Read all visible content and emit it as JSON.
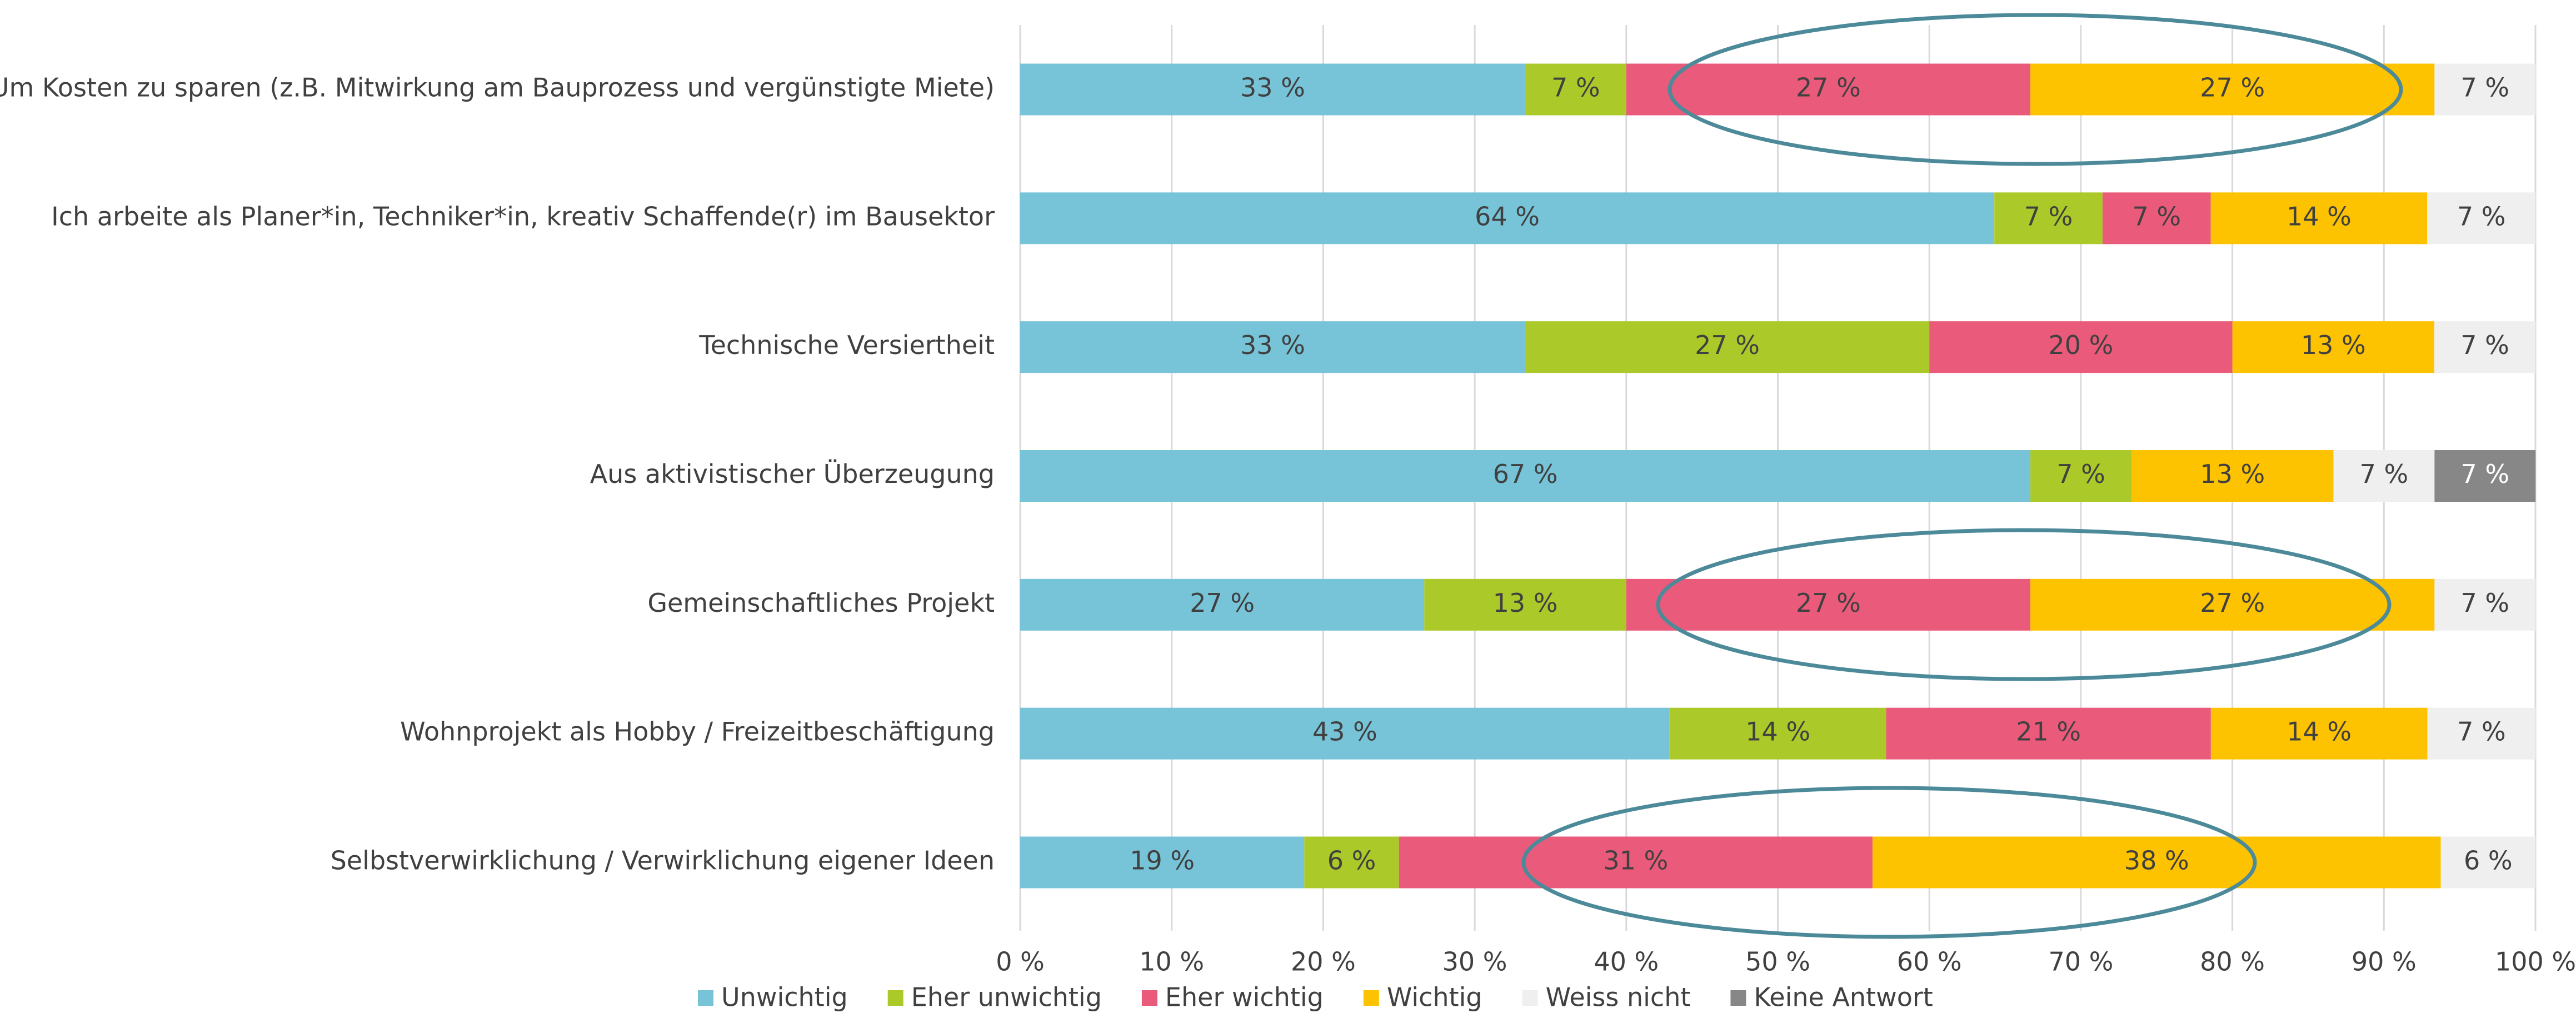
{
  "chart_data": {
    "type": "stacked_bar_horizontal",
    "categories": [
      "Um Kosten zu sparen (z.B. Mitwirkung am Bauprozess und vergünstigte Miete)",
      "Ich arbeite als Planer*in, Techniker*in, kreativ Schaffende(r) im Bausektor",
      "Technische Versiertheit",
      "Aus aktivistischer Überzeugung",
      "Gemeinschaftliches Projekt",
      "Wohnprojekt als Hobby / Freizeitbeschäftigung",
      "Selbstverwirklichung / Verwirklichung eigener Ideen"
    ],
    "series": [
      {
        "name": "Unwichtig",
        "color": "#77c4d9",
        "values": [
          33.33,
          64.29,
          33.33,
          66.67,
          26.67,
          42.86,
          18.75
        ],
        "value_labels": [
          "33 %",
          "64 %",
          "33 %",
          "67 %",
          "27 %",
          "43 %",
          "19 %"
        ]
      },
      {
        "name": "Eher unwichtig",
        "color": "#acc92a",
        "values": [
          6.67,
          7.14,
          26.67,
          6.67,
          13.33,
          14.29,
          6.25
        ],
        "value_labels": [
          "7 %",
          "7 %",
          "27 %",
          "7 %",
          "13 %",
          "14 %",
          "6 %"
        ]
      },
      {
        "name": "Eher wichtig",
        "color": "#ea5a7a",
        "values": [
          26.67,
          7.14,
          20,
          0,
          26.67,
          21.43,
          31.25
        ],
        "value_labels": [
          "27 %",
          "7 %",
          "20 %",
          null,
          "27 %",
          "21 %",
          "31 %"
        ]
      },
      {
        "name": "Wichtig",
        "color": "#fdc300",
        "values": [
          26.67,
          14.29,
          13.33,
          13.33,
          26.67,
          14.29,
          37.5
        ],
        "value_labels": [
          "27 %",
          "14 %",
          "13 %",
          "13 %",
          "27 %",
          "14 %",
          "38 %"
        ]
      },
      {
        "name": "Weiss nicht",
        "color": "#efefef",
        "values": [
          6.67,
          7.14,
          6.67,
          6.67,
          6.67,
          7.14,
          6.25
        ],
        "value_labels": [
          "7 %",
          "7 %",
          "7 %",
          "7 %",
          "7 %",
          "7 %",
          "6 %"
        ]
      },
      {
        "name": "Keine Antwort",
        "color": "#878787",
        "values": [
          0,
          0,
          0,
          6.67,
          0,
          0,
          0
        ],
        "value_labels": [
          null,
          null,
          null,
          "7 %",
          null,
          null,
          null
        ]
      }
    ],
    "xlim": [
      0,
      100
    ],
    "xticks": [
      {
        "value": 0,
        "label": "0 %"
      },
      {
        "value": 10,
        "label": "10 %"
      },
      {
        "value": 20,
        "label": "20 %"
      },
      {
        "value": 30,
        "label": "30 %"
      },
      {
        "value": 40,
        "label": "40 %"
      },
      {
        "value": 50,
        "label": "50 %"
      },
      {
        "value": 60,
        "label": "60 %"
      },
      {
        "value": 70,
        "label": "70 %"
      },
      {
        "value": 80,
        "label": "80 %"
      },
      {
        "value": 90,
        "label": "90 %"
      },
      {
        "value": 100,
        "label": "100 %"
      }
    ],
    "grid": true,
    "legend": "bottom"
  }
}
